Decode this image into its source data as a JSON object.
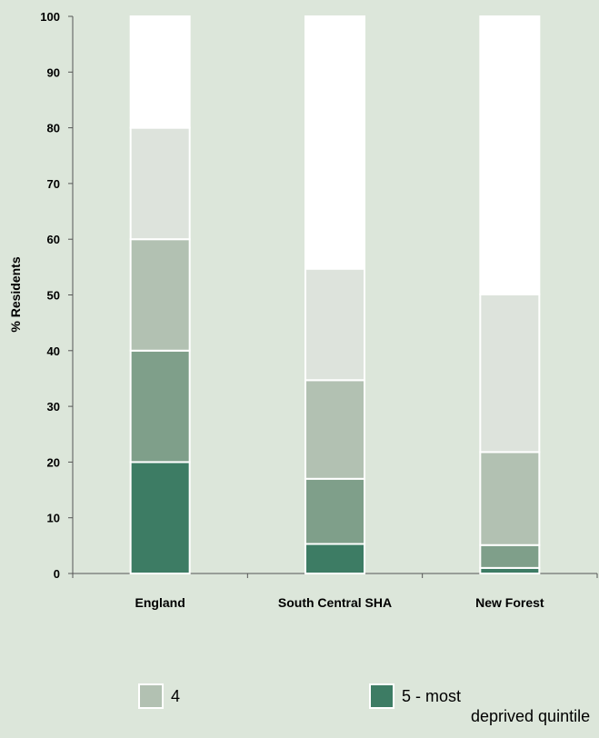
{
  "chart_data": {
    "type": "bar",
    "stacked": true,
    "categories": [
      "England",
      "South Central SHA",
      "New Forest"
    ],
    "series": [
      {
        "name": "5 - most deprived quintile",
        "color": "#3d7c64",
        "values": [
          20,
          5.3,
          1.0
        ]
      },
      {
        "color": "#7f9f8a",
        "values": [
          20,
          11.7,
          4.1
        ]
      },
      {
        "name": "4",
        "color": "#b2c1b2",
        "values": [
          20,
          17.7,
          16.7
        ]
      },
      {
        "color": "#dde3dc",
        "values": [
          20,
          20.0,
          28.3
        ]
      },
      {
        "color": "#ffffff",
        "values": [
          20,
          45.3,
          49.9
        ]
      }
    ],
    "ylabel": "% Residents",
    "xlabel": "",
    "ylim": [
      0,
      100
    ],
    "yticks": [
      "0",
      "10",
      "20",
      "30",
      "40",
      "50",
      "60",
      "70",
      "80",
      "90",
      "100"
    ],
    "grid": false
  },
  "legend": {
    "q4": {
      "label": "4",
      "color": "#b2c1b2"
    },
    "q5": {
      "label_line1": "5 - most",
      "label_line2": "deprived quintile",
      "color": "#3d7c64"
    }
  }
}
